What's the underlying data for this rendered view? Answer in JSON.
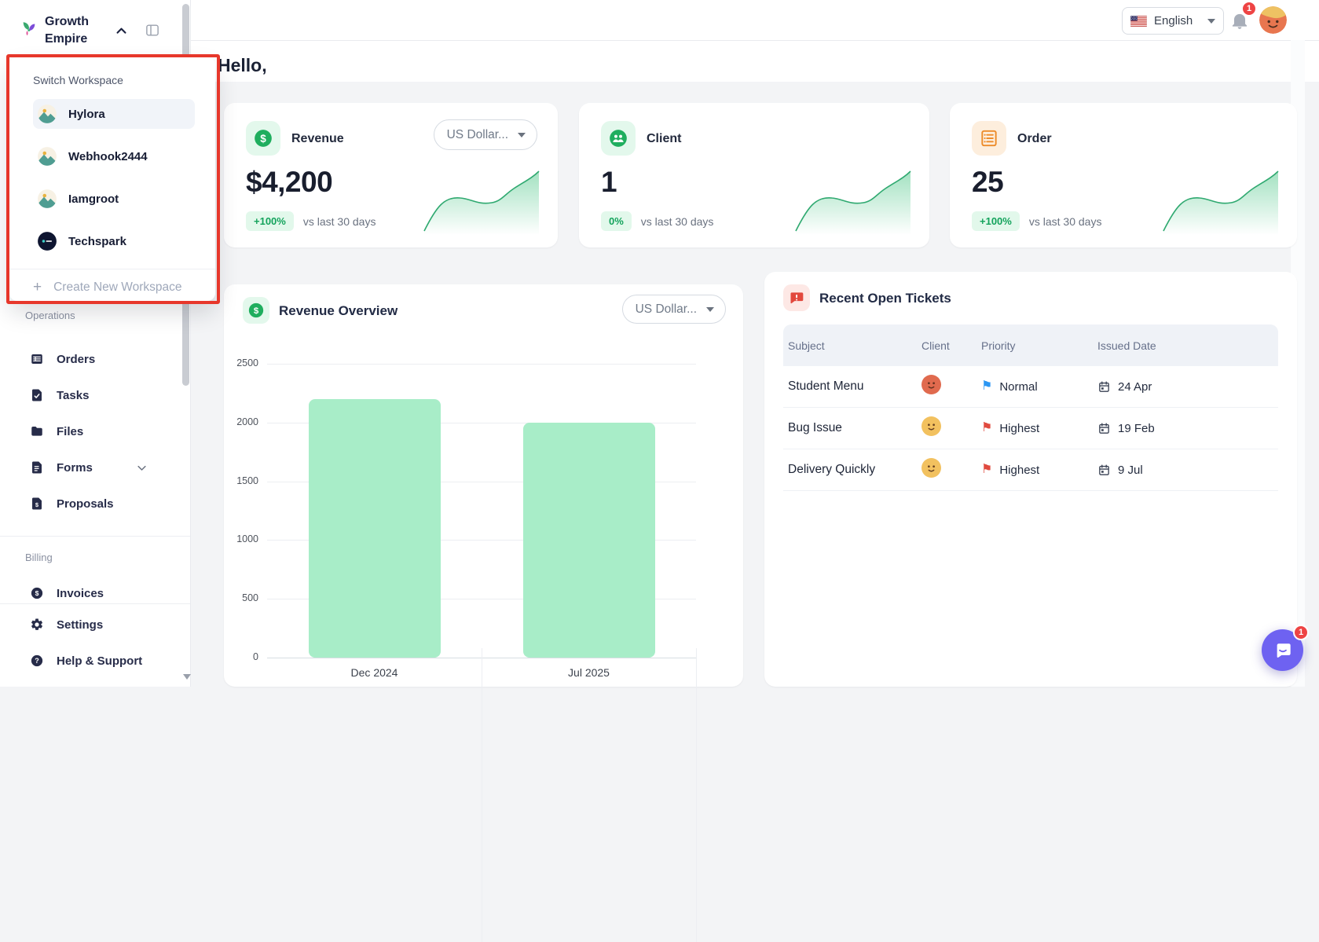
{
  "brand": {
    "name": "Growth Empire"
  },
  "workspace_switcher": {
    "title": "Switch Workspace",
    "workspaces": [
      {
        "name": "Hylora",
        "avatar": "ws-landscape-icon",
        "active": "active"
      },
      {
        "name": "Webhook2444",
        "avatar": "ws-landscape-icon",
        "active": ""
      },
      {
        "name": "Iamgroot",
        "avatar": "ws-landscape-icon",
        "active": ""
      },
      {
        "name": "Techspark",
        "avatar": "ws-dark-icon",
        "active": ""
      }
    ],
    "create_label": "Create New Workspace"
  },
  "sidebar": {
    "sections": [
      {
        "label": "Operations",
        "items": [
          {
            "label": "Orders",
            "icon": "ic-orders",
            "chevron_class": ""
          },
          {
            "label": "Tasks",
            "icon": "ic-tasks",
            "chevron_class": ""
          },
          {
            "label": "Files",
            "icon": "ic-files",
            "chevron_class": ""
          },
          {
            "label": "Forms",
            "icon": "ic-forms",
            "chevron_class": "show"
          },
          {
            "label": "Proposals",
            "icon": "ic-proposals",
            "chevron_class": ""
          }
        ]
      },
      {
        "label": "Billing",
        "items": [
          {
            "label": "Invoices",
            "icon": "ic-invoices",
            "chevron_class": ""
          }
        ]
      }
    ],
    "footer_items": [
      {
        "label": "Settings",
        "icon": "ic-settings",
        "chevron_class": ""
      },
      {
        "label": "Help & Support",
        "icon": "ic-help",
        "chevron_class": ""
      }
    ]
  },
  "header": {
    "greeting": "Hello,",
    "language": "English",
    "notification_count": "1"
  },
  "stat_cards": [
    {
      "label": "Revenue",
      "value": "$4,200",
      "badge": "+100%",
      "caption": "vs last 30 days",
      "currency": "US Dollar..."
    },
    {
      "label": "Client",
      "value": "1",
      "badge": "0%",
      "caption": "vs last 30 days"
    },
    {
      "label": "Order",
      "value": "25",
      "badge": "+100%",
      "caption": "vs last 30 days"
    }
  ],
  "revenue_overview": {
    "title": "Revenue Overview",
    "currency": "US Dollar...",
    "chart_data": {
      "type": "bar",
      "categories": [
        "Dec 2024",
        "Jul 2025"
      ],
      "values": [
        2200,
        2000
      ],
      "yticks": [
        0,
        500,
        1000,
        1500,
        2000,
        2500
      ],
      "ylim": [
        0,
        2500
      ],
      "bar_color": "#a8edc8",
      "grid": "horizontal",
      "title": "Revenue Overview"
    }
  },
  "tickets": {
    "title": "Recent Open Tickets",
    "columns": [
      "Subject",
      "Client",
      "Priority",
      "Issued Date"
    ],
    "rows": [
      {
        "subject": "Student Menu",
        "avatar_color": "#e06a4e",
        "priority": "Normal",
        "priority_color": "#2a96f3",
        "date": "24 Apr"
      },
      {
        "subject": "Bug Issue",
        "avatar_color": "#f2c15f",
        "priority": "Highest",
        "priority_color": "#e04a3f",
        "date": "19 Feb"
      },
      {
        "subject": "Delivery Quickly",
        "avatar_color": "#f2c15f",
        "priority": "Highest",
        "priority_color": "#e04a3f",
        "date": "9 Jul"
      }
    ]
  },
  "chat": {
    "badge": "1"
  },
  "colors": {
    "accent_green": "#1fae5e",
    "accent_orange": "#ed8c2b",
    "annotation_red": "#e7372b",
    "chat_purple": "#6e62f1"
  }
}
